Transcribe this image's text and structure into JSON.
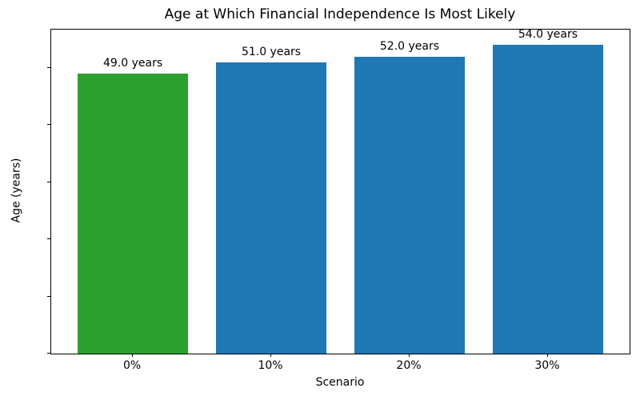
{
  "chart_data": {
    "type": "bar",
    "title": "Age at Which Financial Independence Is Most Likely",
    "xlabel": "Scenario",
    "ylabel": "Age (years)",
    "categories": [
      "0%",
      "10%",
      "20%",
      "30%"
    ],
    "values": [
      49.0,
      51.0,
      52.0,
      54.0
    ],
    "bar_labels": [
      "49.0 years",
      "51.0 years",
      "52.0 years",
      "54.0 years"
    ],
    "bar_colors": [
      "#2ca02c",
      "#1f77b4",
      "#1f77b4",
      "#1f77b4"
    ],
    "ylim": [
      0,
      56.7
    ],
    "yticks": [
      0,
      10,
      20,
      30,
      40,
      50
    ],
    "bar_width_fraction": 0.8,
    "x_margin_fraction": 0.05,
    "grid": false,
    "legend": "none",
    "axis_color": "#000000",
    "text_color": "#000000",
    "background_color": "#ffffff"
  }
}
